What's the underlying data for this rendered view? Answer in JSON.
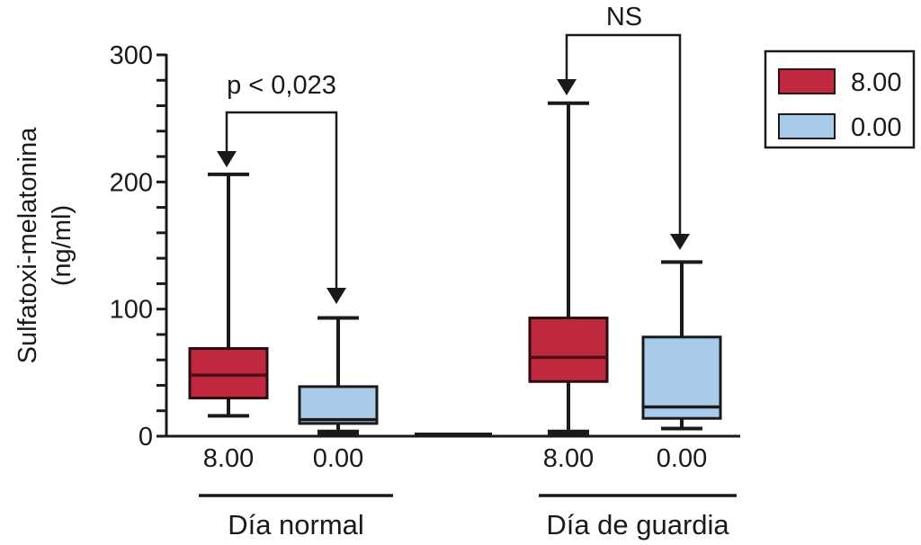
{
  "chart_data": {
    "type": "box",
    "title": "",
    "ylabel_line1": "Sulfatoxi-melatonina",
    "ylabel_line2": "(ng/ml)",
    "ylim": [
      0,
      300
    ],
    "yticks": [
      0,
      100,
      200,
      300
    ],
    "ytick_labels": [
      "0",
      "100",
      "200",
      "300"
    ],
    "yminor_step": 20,
    "grid": false,
    "legend_position": "top-right",
    "legend": [
      {
        "label": "8.00",
        "color": "#c0283f"
      },
      {
        "label": "0.00",
        "color": "#a9cbea"
      }
    ],
    "groups": [
      {
        "label": "Día normal",
        "boxes": [
          {
            "category": "8.00",
            "series": "8.00",
            "min": 16,
            "q1": 30,
            "median": 48,
            "q3": 69,
            "max": 206
          },
          {
            "category": "0.00",
            "series": "0.00",
            "min": 3,
            "q1": 10,
            "median": 13,
            "q3": 39,
            "max": 93
          }
        ]
      },
      {
        "label": "Día de guardia",
        "boxes": [
          {
            "category": "8.00",
            "series": "8.00",
            "min": 3,
            "q1": 43,
            "median": 62,
            "q3": 93,
            "max": 262
          },
          {
            "category": "0.00",
            "series": "0.00",
            "min": 6,
            "q1": 14,
            "median": 23,
            "q3": 78,
            "max": 137
          }
        ]
      }
    ],
    "annotations": [
      {
        "text": "p < 0,023",
        "group": 0
      },
      {
        "text": "NS",
        "group": 1
      }
    ]
  },
  "colors": {
    "axis": "#1a1a1a",
    "box8": "#c0283f",
    "box0": "#a9cbea",
    "median8": "#4a0f18",
    "median0": "#1a1a1a"
  }
}
